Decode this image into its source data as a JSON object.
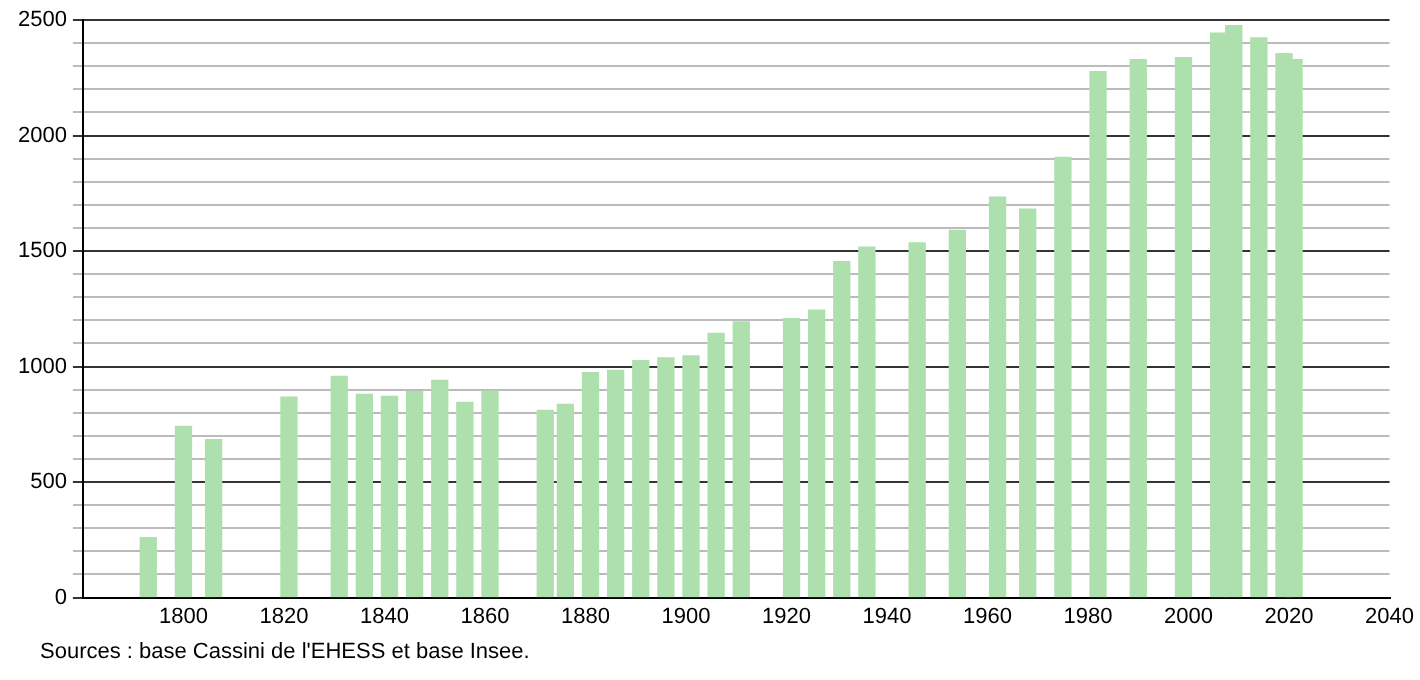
{
  "chart_data": {
    "type": "bar",
    "x": [
      1793,
      1800,
      1806,
      1821,
      1831,
      1836,
      1841,
      1846,
      1851,
      1856,
      1861,
      1872,
      1876,
      1881,
      1886,
      1891,
      1896,
      1901,
      1906,
      1911,
      1921,
      1926,
      1931,
      1936,
      1946,
      1954,
      1962,
      1968,
      1975,
      1982,
      1990,
      1999,
      2006,
      2009,
      2014,
      2019,
      2021
    ],
    "values": [
      259,
      741,
      684,
      868,
      957,
      879,
      871,
      891,
      940,
      845,
      894,
      810,
      836,
      974,
      983,
      1026,
      1037,
      1046,
      1144,
      1193,
      1207,
      1244,
      1454,
      1517,
      1535,
      1589,
      1733,
      1681,
      1905,
      2276,
      2328,
      2337,
      2443,
      2475,
      2423,
      2354,
      2328
    ],
    "color": "#aee0ae",
    "xlim": [
      1780,
      2040
    ],
    "xticks": [
      1800,
      1820,
      1840,
      1860,
      1880,
      1900,
      1920,
      1940,
      1960,
      1980,
      2000,
      2020,
      2040
    ],
    "ylim": [
      0,
      2500
    ],
    "yticks": [
      0,
      {
        "value": 100,
        "label": null
      },
      {
        "value": 200,
        "label": null
      },
      {
        "value": 300,
        "label": null
      },
      {
        "value": 400,
        "label": null
      },
      500,
      {
        "value": 600,
        "label": null
      },
      {
        "value": 700,
        "label": null
      },
      {
        "value": 800,
        "label": null
      },
      {
        "value": 900,
        "label": null
      },
      1000,
      {
        "value": 1100,
        "label": null
      },
      {
        "value": 1200,
        "label": null
      },
      {
        "value": 1300,
        "label": null
      },
      {
        "value": 1400,
        "label": null
      },
      1500,
      {
        "value": 1600,
        "label": null
      },
      {
        "value": 1700,
        "label": null
      },
      {
        "value": 1800,
        "label": null
      },
      {
        "value": 1900,
        "label": null
      },
      2000,
      {
        "value": 2100,
        "label": null
      },
      {
        "value": 2200,
        "label": null
      },
      {
        "value": 2300,
        "label": null
      },
      {
        "value": 2400,
        "label": null
      },
      2500
    ],
    "grid": "y",
    "annotations": [
      "Sources : base Cassini de l'EHESS et base Insee."
    ]
  }
}
